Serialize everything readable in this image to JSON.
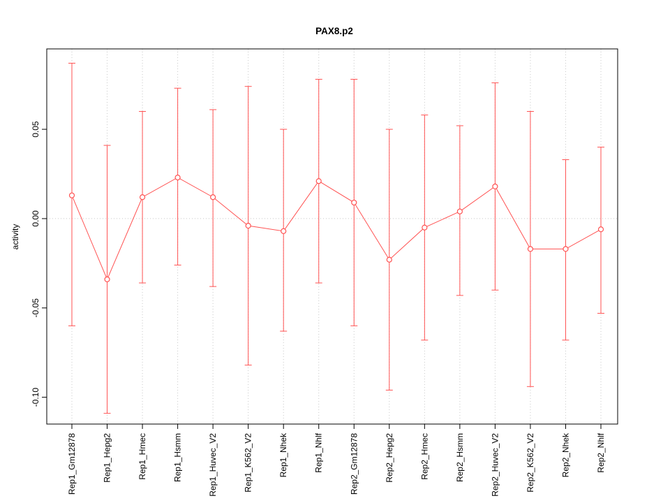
{
  "title": "PAX8.p2",
  "chart_data": {
    "type": "line",
    "title": "PAX8.p2",
    "xlabel": "",
    "ylabel": "activity",
    "ylim": [
      -0.115,
      0.095
    ],
    "yticks": [
      0.05,
      0.0,
      -0.05,
      -0.1
    ],
    "ytick_labels": [
      "0.05",
      "0.00",
      "-0.05",
      "-0.10"
    ],
    "legend": "none",
    "grid": "dotted light-gray vertical line at each category, dotted horizontal line at y=0",
    "marker": "open-circle",
    "error_bars": true,
    "series_color": "#ff5252",
    "grid_color": "#c8c8c8",
    "axis_color": "#000000",
    "categories": [
      "Rep1_Gm12878",
      "Rep1_Hepg2",
      "Rep1_Hmec",
      "Rep1_Hsmm",
      "Rep1_Huvec_V2",
      "Rep1_K562_V2",
      "Rep1_Nhek",
      "Rep1_Nhlf",
      "Rep2_Gm12878",
      "Rep2_Hepg2",
      "Rep2_Hmec",
      "Rep2_Hsmm",
      "Rep2_Huvec_V2",
      "Rep2_K562_V2",
      "Rep2_Nhek",
      "Rep2_Nhlf"
    ],
    "values": [
      0.013,
      -0.034,
      0.012,
      0.023,
      0.012,
      -0.004,
      -0.007,
      0.021,
      0.009,
      -0.023,
      -0.005,
      0.004,
      0.018,
      -0.017,
      -0.017,
      -0.006
    ],
    "upper": [
      0.087,
      0.041,
      0.06,
      0.073,
      0.061,
      0.074,
      0.05,
      0.078,
      0.078,
      0.05,
      0.058,
      0.052,
      0.076,
      0.06,
      0.033,
      0.04
    ],
    "lower": [
      -0.06,
      -0.109,
      -0.036,
      -0.026,
      -0.038,
      -0.082,
      -0.063,
      -0.036,
      -0.06,
      -0.096,
      -0.068,
      -0.043,
      -0.04,
      -0.094,
      -0.068,
      -0.053
    ]
  }
}
